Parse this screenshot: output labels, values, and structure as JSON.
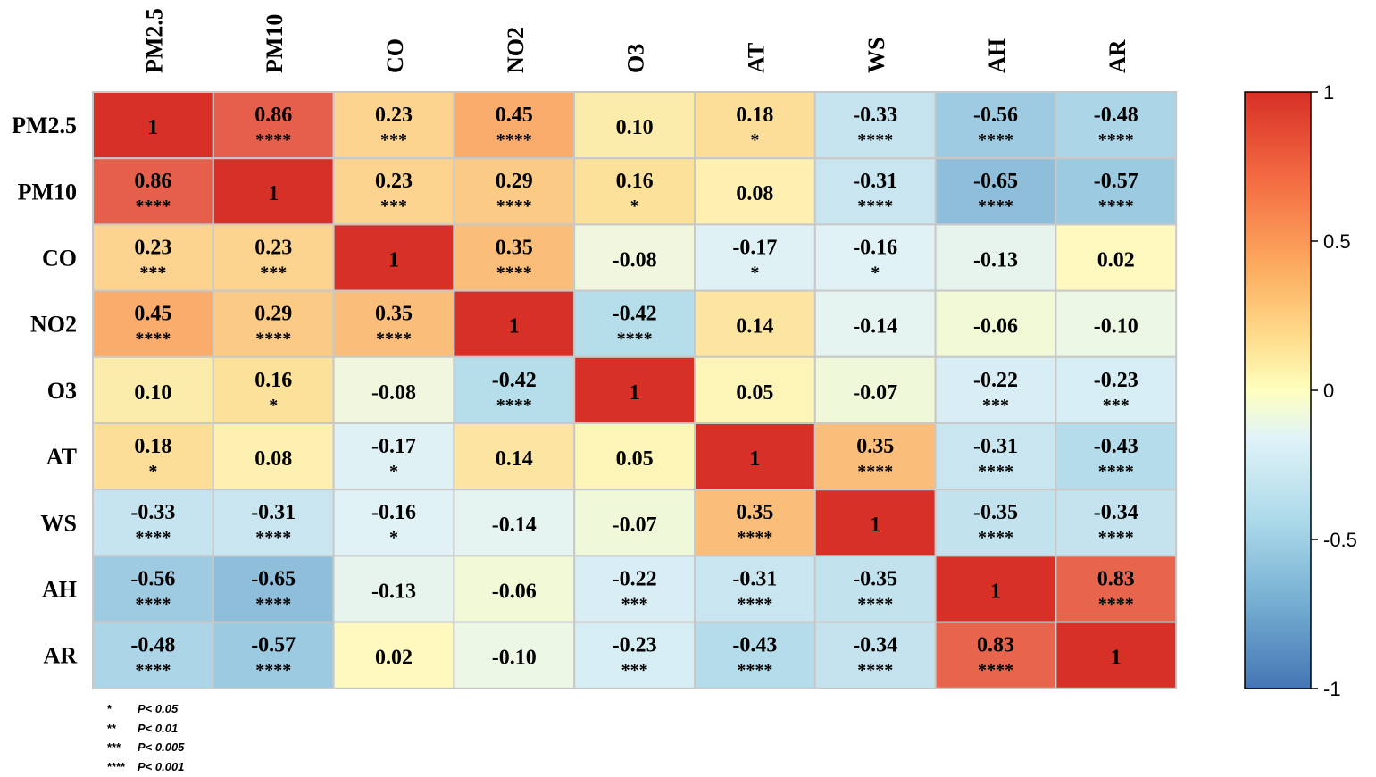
{
  "chart_data": {
    "type": "heatmap",
    "variables": [
      "PM2.5",
      "PM10",
      "CO",
      "NO2",
      "O3",
      "AT",
      "WS",
      "AH",
      "AR"
    ],
    "values": [
      [
        "1",
        "0.86",
        "0.23",
        "0.45",
        "0.10",
        "0.18",
        "-0.33",
        "-0.56",
        "-0.48"
      ],
      [
        "0.86",
        "1",
        "0.23",
        "0.29",
        "0.16",
        "0.08",
        "-0.31",
        "-0.65",
        "-0.57"
      ],
      [
        "0.23",
        "0.23",
        "1",
        "0.35",
        "-0.08",
        "-0.17",
        "-0.16",
        "-0.13",
        "0.02"
      ],
      [
        "0.45",
        "0.29",
        "0.35",
        "1",
        "-0.42",
        "0.14",
        "-0.14",
        "-0.06",
        "-0.10"
      ],
      [
        "0.10",
        "0.16",
        "-0.08",
        "-0.42",
        "1",
        "0.05",
        "-0.07",
        "-0.22",
        "-0.23"
      ],
      [
        "0.18",
        "0.08",
        "-0.17",
        "0.14",
        "0.05",
        "1",
        "0.35",
        "-0.31",
        "-0.43"
      ],
      [
        "-0.33",
        "-0.31",
        "-0.16",
        "-0.14",
        "-0.07",
        "0.35",
        "1",
        "-0.35",
        "-0.34"
      ],
      [
        "-0.56",
        "-0.65",
        "-0.13",
        "-0.06",
        "-0.22",
        "-0.31",
        "-0.35",
        "1",
        "0.83"
      ],
      [
        "-0.48",
        "-0.57",
        "0.02",
        "-0.10",
        "-0.23",
        "-0.43",
        "-0.34",
        "0.83",
        "1"
      ]
    ],
    "significance": [
      [
        "",
        "****",
        "***",
        "****",
        "",
        "*",
        "****",
        "****",
        "****"
      ],
      [
        "****",
        "",
        "***",
        "****",
        "*",
        "",
        "****",
        "****",
        "****"
      ],
      [
        "***",
        "***",
        "",
        "****",
        "",
        "*",
        "*",
        "",
        ""
      ],
      [
        "****",
        "****",
        "****",
        "",
        "****",
        "",
        "",
        "",
        ""
      ],
      [
        "",
        "*",
        "",
        "****",
        "",
        "",
        "",
        "***",
        "***"
      ],
      [
        "*",
        "",
        "*",
        "",
        "",
        "",
        "****",
        "****",
        "****"
      ],
      [
        "****",
        "****",
        "*",
        "",
        "",
        "****",
        "",
        "****",
        "****"
      ],
      [
        "****",
        "****",
        "",
        "",
        "***",
        "****",
        "****",
        "",
        "****"
      ],
      [
        "****",
        "****",
        "",
        "",
        "***",
        "****",
        "****",
        "****",
        ""
      ]
    ],
    "colorbar": {
      "ticks": [
        "1",
        "0.5",
        "0",
        "-0.5",
        "-1"
      ],
      "range": [
        -1,
        1
      ],
      "colors": {
        "low": "#4575b4",
        "mid": "#ffffbf",
        "high": "#d73027"
      }
    },
    "legend": [
      {
        "stars": "*",
        "label": "P< 0.05"
      },
      {
        "stars": "**",
        "label": "P< 0.01"
      },
      {
        "stars": "***",
        "label": "P< 0.005"
      },
      {
        "stars": "****",
        "label": "P< 0.001"
      }
    ]
  }
}
